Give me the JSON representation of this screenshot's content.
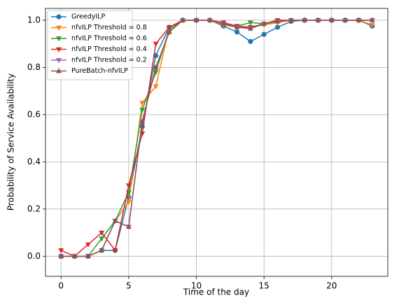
{
  "chart_data": {
    "type": "line",
    "x_label": "Time of the day",
    "y_label": "Probability of Service Availability",
    "x": [
      0,
      1,
      2,
      3,
      4,
      5,
      6,
      7,
      8,
      9,
      10,
      11,
      12,
      13,
      14,
      15,
      16,
      17,
      18,
      19,
      20,
      21,
      22,
      23
    ],
    "series": [
      {
        "name": "GreedyILP",
        "color": "#1f77b4",
        "marker": "circle",
        "values": [
          0,
          0,
          0,
          0.025,
          0.025,
          0.25,
          0.55,
          0.85,
          0.97,
          1,
          1,
          1,
          0.975,
          0.95,
          0.91,
          0.94,
          0.97,
          0.995,
          1,
          1,
          1,
          1,
          1,
          0.975
        ]
      },
      {
        "name": "nfvILP Threshold = 0.8",
        "color": "#ff7f0e",
        "marker": "triangle-down",
        "values": [
          0,
          0,
          0,
          0.025,
          0.15,
          0.23,
          0.65,
          0.72,
          0.97,
          1,
          1,
          1,
          0.98,
          0.97,
          0.97,
          0.98,
          0.99,
          1,
          1,
          1,
          1,
          1,
          1,
          0.98
        ]
      },
      {
        "name": "nfvILP Threshold = 0.6",
        "color": "#2ca02c",
        "marker": "triangle-down",
        "values": [
          0,
          0,
          0,
          0.075,
          0.15,
          0.27,
          0.62,
          0.78,
          0.96,
          1,
          1,
          1,
          0.985,
          0.975,
          0.99,
          0.985,
          0.995,
          1,
          1,
          1,
          1,
          1,
          1,
          1
        ]
      },
      {
        "name": "nfvILP Threshold = 0.4",
        "color": "#d62728",
        "marker": "triangle-down",
        "values": [
          0.025,
          0,
          0.05,
          0.1,
          0.025,
          0.3,
          0.52,
          0.9,
          0.97,
          1,
          1,
          1,
          0.99,
          0.975,
          0.97,
          0.985,
          1,
          1,
          1,
          1,
          1,
          1,
          1,
          1
        ]
      },
      {
        "name": "nfvILP Threshold = 0.2",
        "color": "#9467bd",
        "marker": "triangle-down",
        "values": [
          0,
          0,
          0,
          0.025,
          0.15,
          0.125,
          0.57,
          0.8,
          0.95,
          1,
          1,
          1,
          0.985,
          0.97,
          0.965,
          0.985,
          0.995,
          1,
          1,
          1,
          1,
          1,
          1,
          1
        ]
      },
      {
        "name": "PureBatch-nfvILP",
        "color": "#8c564b",
        "marker": "triangle-up",
        "values": [
          0,
          0,
          0,
          0.025,
          0.15,
          0.125,
          0.57,
          0.8,
          0.95,
          1,
          1,
          1,
          0.985,
          0.97,
          0.965,
          0.985,
          0.995,
          1,
          1,
          1,
          1,
          1,
          1,
          1
        ]
      }
    ],
    "xlim": [
      -1.15,
      24.15
    ],
    "ylim": [
      -0.085,
      1.05
    ],
    "xticks": [
      0,
      5,
      10,
      15,
      20
    ],
    "yticks": [
      {
        "value": 0,
        "label": "0.0"
      },
      {
        "value": 0.2,
        "label": "0.2"
      },
      {
        "value": 0.4,
        "label": "0.4"
      },
      {
        "value": 0.6,
        "label": "0.6"
      },
      {
        "value": 0.8,
        "label": "0.8"
      },
      {
        "value": 1,
        "label": "1.0"
      }
    ],
    "grid": true,
    "legend_position": "upper-left"
  }
}
